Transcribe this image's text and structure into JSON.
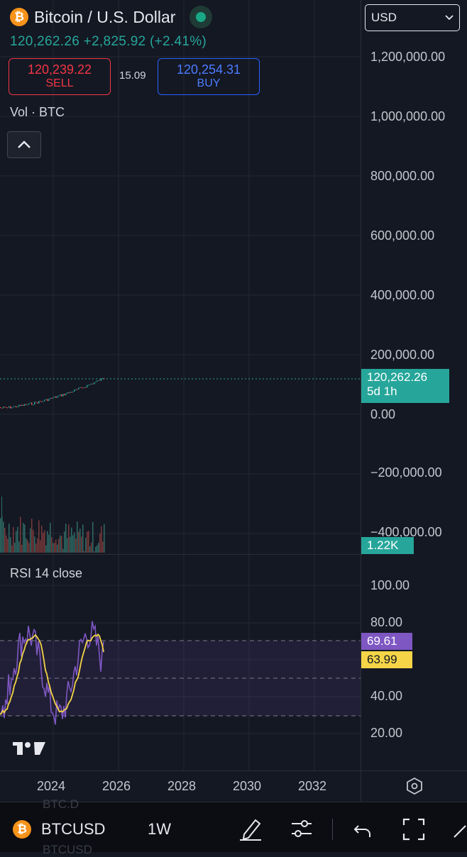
{
  "header": {
    "title": "Bitcoin / U.S. Dollar",
    "logo_glyph": "₿",
    "price_line": "120,262.26 +2,825.92 (+2.41%)",
    "sell": {
      "price": "120,239.22",
      "label": "SELL"
    },
    "buy": {
      "price": "120,254.31",
      "label": "BUY"
    },
    "spread": "15.09",
    "volume_indicator": "Vol · BTC",
    "currency": "USD"
  },
  "price_axis": {
    "labels": [
      "1,200,000.00",
      "1,000,000.00",
      "800,000.00",
      "600,000.00",
      "400,000.00",
      "200,000.00",
      "0.00",
      "−200,000.00",
      "−400,000.00"
    ],
    "last_price_tag": {
      "price": "120,262.26",
      "countdown": "5d 1h"
    },
    "volume_tag": "1.22K"
  },
  "rsi": {
    "label": "RSI 14 close",
    "axis_labels": [
      "100.00",
      "80.00",
      "40.00",
      "20.00"
    ],
    "rsi_tag": "69.61",
    "ma_tag": "63.99"
  },
  "time_axis": {
    "labels": [
      "2024",
      "2026",
      "2028",
      "2030",
      "2032"
    ]
  },
  "bottom_bar": {
    "symbol": "BTCUSD",
    "timeframe": "1W",
    "ghost_top": "BTC.D",
    "ghost_bottom": "BTCUSD"
  },
  "colors": {
    "up": "#26a69a",
    "down": "#ef5350",
    "rsi_line": "#7e57c2",
    "rsi_ma": "#f5d547",
    "sell": "#f23645",
    "buy": "#2962ff"
  },
  "icons": [
    "bitcoin-logo-icon",
    "chevron-up-icon",
    "chevron-down-icon",
    "settings-hexagon-icon",
    "draw-pen-icon",
    "indicators-sliders-icon",
    "undo-icon",
    "fullscreen-icon",
    "tradingview-logo-icon"
  ]
}
